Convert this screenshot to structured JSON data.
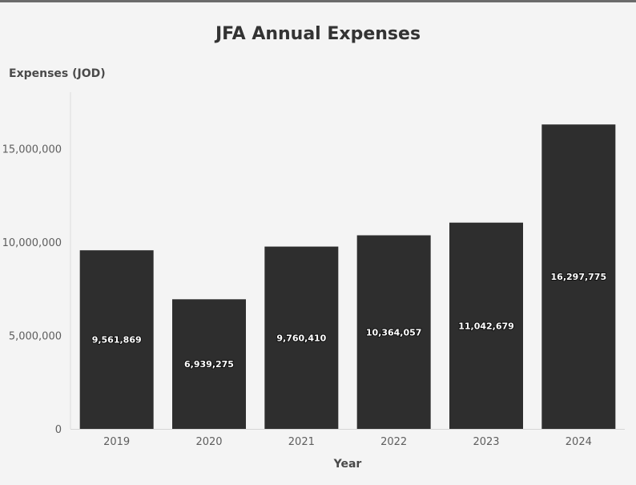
{
  "chart_data": {
    "type": "bar",
    "title": "JFA Annual Expenses",
    "ylabel": "Expenses (JOD)",
    "xlabel": "Year",
    "categories": [
      "2019",
      "2020",
      "2021",
      "2022",
      "2023",
      "2024"
    ],
    "values": [
      9561869,
      6939275,
      9760410,
      10364057,
      11042679,
      16297775
    ],
    "value_labels": [
      "9,561,869",
      "6,939,275",
      "9,760,410",
      "10,364,057",
      "11,042,679",
      "16,297,775"
    ],
    "y_ticks": [
      0,
      5000000,
      10000000,
      15000000
    ],
    "y_tick_labels": [
      "0",
      "5,000,000",
      "10,000,000",
      "15,000,000"
    ],
    "ylim": [
      0,
      18000000
    ],
    "grid": false,
    "bar_color": "#2e2e2e",
    "background": "#f4f4f4"
  }
}
